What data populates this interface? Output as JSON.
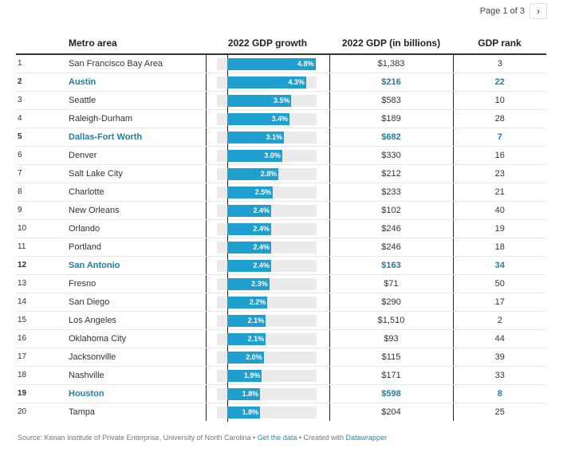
{
  "pager": {
    "label": "Page 1 of 3",
    "next_icon": "chevron-right-icon"
  },
  "headers": [
    "",
    "Metro area",
    "2022 GDP growth",
    "2022 GDP (in billions)",
    "GDP rank"
  ],
  "colors": {
    "bar": "#1f9fcf",
    "highlight": "#1e7fa3",
    "track": "#ebebeb"
  },
  "growth_max": 4.8,
  "rows": [
    {
      "n": "1",
      "metro": "San Francisco Bay Area",
      "growth": 4.8,
      "growth_label": "4.8%",
      "gdp": "$1,383",
      "rank": "3",
      "hl": false
    },
    {
      "n": "2",
      "metro": "Austin",
      "growth": 4.3,
      "growth_label": "4.3%",
      "gdp": "$216",
      "rank": "22",
      "hl": true
    },
    {
      "n": "3",
      "metro": "Seattle",
      "growth": 3.5,
      "growth_label": "3.5%",
      "gdp": "$583",
      "rank": "10",
      "hl": false
    },
    {
      "n": "4",
      "metro": "Raleigh-Durham",
      "growth": 3.4,
      "growth_label": "3.4%",
      "gdp": "$189",
      "rank": "28",
      "hl": false
    },
    {
      "n": "5",
      "metro": "Dallas-Fort Worth",
      "growth": 3.1,
      "growth_label": "3.1%",
      "gdp": "$682",
      "rank": "7",
      "hl": true
    },
    {
      "n": "6",
      "metro": "Denver",
      "growth": 3.0,
      "growth_label": "3.0%",
      "gdp": "$330",
      "rank": "16",
      "hl": false
    },
    {
      "n": "7",
      "metro": "Salt Lake City",
      "growth": 2.8,
      "growth_label": "2.8%",
      "gdp": "$212",
      "rank": "23",
      "hl": false
    },
    {
      "n": "8",
      "metro": "Charlotte",
      "growth": 2.5,
      "growth_label": "2.5%",
      "gdp": "$233",
      "rank": "21",
      "hl": false
    },
    {
      "n": "9",
      "metro": "New Orleans",
      "growth": 2.4,
      "growth_label": "2.4%",
      "gdp": "$102",
      "rank": "40",
      "hl": false
    },
    {
      "n": "10",
      "metro": "Orlando",
      "growth": 2.4,
      "growth_label": "2.4%",
      "gdp": "$246",
      "rank": "19",
      "hl": false
    },
    {
      "n": "11",
      "metro": "Portland",
      "growth": 2.4,
      "growth_label": "2.4%",
      "gdp": "$246",
      "rank": "18",
      "hl": false
    },
    {
      "n": "12",
      "metro": "San Antonio",
      "growth": 2.4,
      "growth_label": "2.4%",
      "gdp": "$163",
      "rank": "34",
      "hl": true
    },
    {
      "n": "13",
      "metro": "Fresno",
      "growth": 2.3,
      "growth_label": "2.3%",
      "gdp": "$71",
      "rank": "50",
      "hl": false
    },
    {
      "n": "14",
      "metro": "San Diego",
      "growth": 2.2,
      "growth_label": "2.2%",
      "gdp": "$290",
      "rank": "17",
      "hl": false
    },
    {
      "n": "15",
      "metro": "Los Angeles",
      "growth": 2.1,
      "growth_label": "2.1%",
      "gdp": "$1,510",
      "rank": "2",
      "hl": false
    },
    {
      "n": "16",
      "metro": "Oklahoma City",
      "growth": 2.1,
      "growth_label": "2.1%",
      "gdp": "$93",
      "rank": "44",
      "hl": false
    },
    {
      "n": "17",
      "metro": "Jacksonville",
      "growth": 2.0,
      "growth_label": "2.0%",
      "gdp": "$115",
      "rank": "39",
      "hl": false
    },
    {
      "n": "18",
      "metro": "Nashville",
      "growth": 1.9,
      "growth_label": "1.9%",
      "gdp": "$171",
      "rank": "33",
      "hl": false
    },
    {
      "n": "19",
      "metro": "Houston",
      "growth": 1.8,
      "growth_label": "1.8%",
      "gdp": "$598",
      "rank": "8",
      "hl": true
    },
    {
      "n": "20",
      "metro": "Tampa",
      "growth": 1.8,
      "growth_label": "1.8%",
      "gdp": "$204",
      "rank": "25",
      "hl": false
    }
  ],
  "footer": {
    "source": "Source: Kenan Institute of Private Enterprise, University of North Carolina",
    "sep": " • ",
    "get_data": "Get the data",
    "created": "Created with ",
    "datawrapper": "Datawrapper"
  }
}
